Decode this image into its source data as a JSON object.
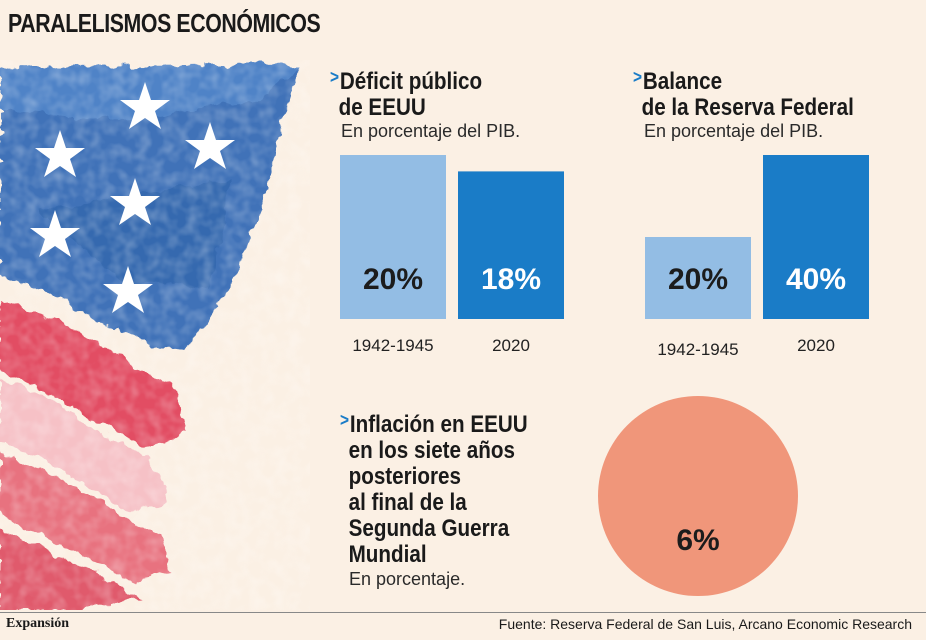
{
  "title": "PARALELISMOS ECONÓMICOS",
  "colors": {
    "accent_blue": "#1a7cc7",
    "light_blue": "#93bde4",
    "salmon": "#f0967a",
    "flag_blue": "#3f72b8",
    "flag_red": "#e24e63",
    "background": "#fbf0e4"
  },
  "chart_data": [
    {
      "type": "bar",
      "title_line1": "Déficit público",
      "title_line2": "de EEUU",
      "subtitle": "En porcentaje del PIB.",
      "categories": [
        "1942-1945",
        "2020"
      ],
      "values": [
        20,
        18
      ],
      "value_labels": [
        "20%",
        "18%"
      ],
      "colors": [
        "#93bde4",
        "#1a7cc7"
      ],
      "label_colors": [
        "#1c1c1c",
        "#ffffff"
      ],
      "ylim": [
        0,
        20
      ]
    },
    {
      "type": "bar",
      "title_line1": "Balance",
      "title_line2": "de la Reserva Federal",
      "subtitle": "En porcentaje del PIB.",
      "categories": [
        "1942-1945",
        "2020"
      ],
      "values": [
        20,
        40
      ],
      "value_labels": [
        "20%",
        "40%"
      ],
      "colors": [
        "#93bde4",
        "#1a7cc7"
      ],
      "label_colors": [
        "#1c1c1c",
        "#ffffff"
      ],
      "ylim": [
        0,
        40
      ]
    },
    {
      "type": "pie",
      "title_lines": [
        "Inflación en EEUU",
        "en los siete años",
        "posteriores",
        "al final de la",
        "Segunda Guerra",
        "Mundial"
      ],
      "subtitle": "En porcentaje.",
      "value": 6,
      "value_label": "6%",
      "color": "#f0967a"
    }
  ],
  "footer": {
    "brand": "Expansión",
    "source": "Fuente: Reserva Federal de San Luis, Arcano Economic Research"
  }
}
